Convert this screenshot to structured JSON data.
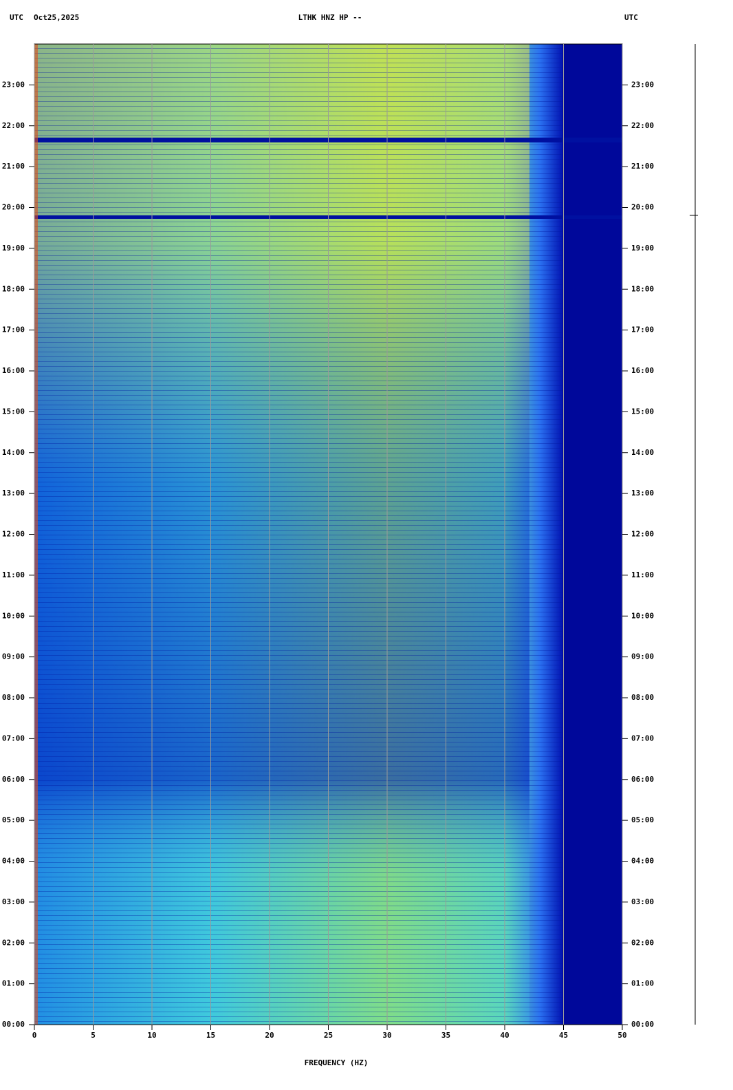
{
  "chart_data": {
    "type": "spectrogram",
    "header_left": "UTC",
    "date": "Oct25,2025",
    "title": "LTHK HNZ HP --",
    "header_right": "UTC",
    "xlabel": "FREQUENCY (HZ)",
    "xlim": [
      0,
      50
    ],
    "xticks": [
      0,
      5,
      10,
      15,
      20,
      25,
      30,
      35,
      40,
      45,
      50
    ],
    "ylim": [
      0,
      24
    ],
    "yticks": [
      {
        "value": 0,
        "label": "00:00"
      },
      {
        "value": 1,
        "label": "01:00"
      },
      {
        "value": 2,
        "label": "02:00"
      },
      {
        "value": 3,
        "label": "03:00"
      },
      {
        "value": 4,
        "label": "04:00"
      },
      {
        "value": 5,
        "label": "05:00"
      },
      {
        "value": 6,
        "label": "06:00"
      },
      {
        "value": 7,
        "label": "07:00"
      },
      {
        "value": 8,
        "label": "08:00"
      },
      {
        "value": 9,
        "label": "09:00"
      },
      {
        "value": 10,
        "label": "10:00"
      },
      {
        "value": 11,
        "label": "11:00"
      },
      {
        "value": 12,
        "label": "12:00"
      },
      {
        "value": 13,
        "label": "13:00"
      },
      {
        "value": 14,
        "label": "14:00"
      },
      {
        "value": 15,
        "label": "15:00"
      },
      {
        "value": 16,
        "label": "16:00"
      },
      {
        "value": 17,
        "label": "17:00"
      },
      {
        "value": 18,
        "label": "18:00"
      },
      {
        "value": 19,
        "label": "19:00"
      },
      {
        "value": 20,
        "label": "20:00"
      },
      {
        "value": 21,
        "label": "21:00"
      },
      {
        "value": 22,
        "label": "22:00"
      },
      {
        "value": 23,
        "label": "23:00"
      }
    ],
    "grid": true
  }
}
